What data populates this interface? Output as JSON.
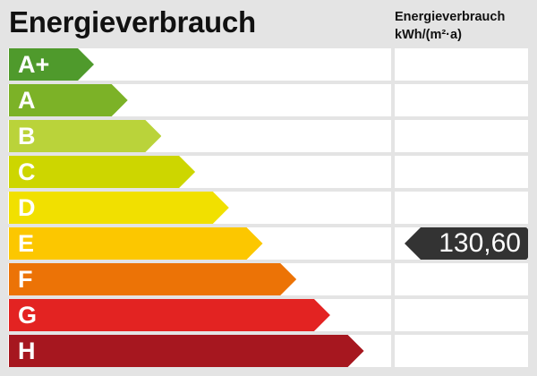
{
  "title": "Energieverbrauch",
  "column_header": {
    "line1": "Energieverbrauch",
    "line2": "kWh/(m²·a)"
  },
  "chart_data": {
    "type": "energy-efficiency-scale",
    "title": "Energieverbrauch",
    "unit": "kWh/(m²·a)",
    "classes": [
      {
        "label": "A+",
        "color": "#4f9a2c"
      },
      {
        "label": "A",
        "color": "#7cb227"
      },
      {
        "label": "B",
        "color": "#bad33a"
      },
      {
        "label": "C",
        "color": "#cdd600"
      },
      {
        "label": "D",
        "color": "#f1e000"
      },
      {
        "label": "E",
        "color": "#fcc700"
      },
      {
        "label": "F",
        "color": "#ec7306"
      },
      {
        "label": "G",
        "color": "#e32322"
      },
      {
        "label": "H",
        "color": "#a6171f"
      }
    ],
    "value": "130,60",
    "value_class": "E",
    "marker_color": "#333333"
  }
}
